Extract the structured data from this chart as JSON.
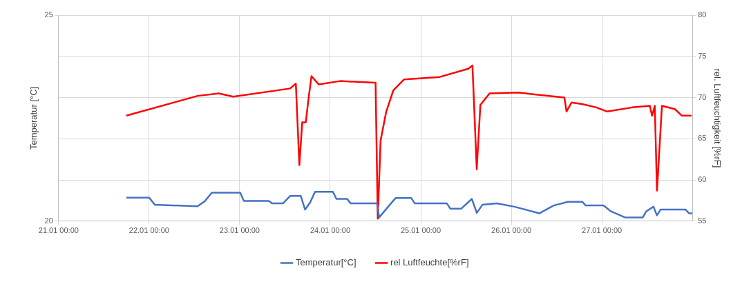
{
  "chart_data": {
    "type": "line",
    "ylabel": "Temperatur [°C]",
    "y2label": "rel. Luftfeuchtigkeit [%rF]",
    "xlim": [
      "--01-21",
      "--01-28"
    ],
    "xticks": [
      {
        "value": "--01-21",
        "label": "21.01 00:00"
      },
      {
        "value": "--01-22",
        "label": "22.01 00:00"
      },
      {
        "value": "--01-23",
        "label": "23.01 00:00"
      },
      {
        "value": "--01-24",
        "label": "24.01 00:00"
      },
      {
        "value": "--01-25",
        "label": "25.01 00:00"
      },
      {
        "value": "--01-26",
        "label": "26.01 00:00"
      },
      {
        "value": "--01-27",
        "label": "27.01 00:00"
      }
    ],
    "ylim": [
      20,
      25
    ],
    "yticks": [
      20,
      25
    ],
    "y2lim": [
      55,
      80
    ],
    "y2ticks": [
      55,
      60,
      65,
      70,
      75,
      80
    ],
    "grid": true,
    "legend": "bottom",
    "marker": "none",
    "line_style": "solid",
    "series": [
      {
        "name": "Temperatur[°C]",
        "color": "#4472c4",
        "axis": "y",
        "x": [
          "--01-21T17:56",
          "--01-22T00:00",
          "--01-22T01:29",
          "--01-22T12:49",
          "--01-22T14:43",
          "--01-22T16:36",
          "--01-23T00:09",
          "--01-23T01:06",
          "--01-23T07:42",
          "--01-23T08:38",
          "--01-23T11:28",
          "--01-23T13:22",
          "--01-23T16:12",
          "--01-23T17:20",
          "--01-23T18:39",
          "--01-23T19:58",
          "--01-24T00:42",
          "--01-24T01:38",
          "--01-24T04:28",
          "--01-24T05:25",
          "--01-24T12:24",
          "--01-24T12:59",
          "--01-24T15:49",
          "--01-24T17:20",
          "--01-24T21:29",
          "--01-24T22:25",
          "--01-25T06:55",
          "--01-25T07:51",
          "--01-25T10:41",
          "--01-25T13:32",
          "--01-25T14:51",
          "--01-25T16:22",
          "--01-25T20:08",
          "--01-26T00:50",
          "--01-26T07:28",
          "--01-26T11:14",
          "--01-26T15:01",
          "--01-26T18:48",
          "--01-26T19:44",
          "--01-27T00:27",
          "--01-27T02:21",
          "--01-27T06:07",
          "--01-27T10:51",
          "--01-27T11:47",
          "--01-27T13:41",
          "--01-27T14:37",
          "--01-27T15:33",
          "--01-27T22:11",
          "--01-27T23:07",
          "--01-28T00:00"
        ],
        "values": [
          20.57,
          20.57,
          20.4,
          20.36,
          20.48,
          20.69,
          20.69,
          20.49,
          20.49,
          20.43,
          20.43,
          20.61,
          20.61,
          20.28,
          20.45,
          20.71,
          20.71,
          20.54,
          20.54,
          20.43,
          20.43,
          20.09,
          20.4,
          20.56,
          20.56,
          20.43,
          20.43,
          20.3,
          20.3,
          20.54,
          20.2,
          20.4,
          20.43,
          20.35,
          20.19,
          20.38,
          20.47,
          20.47,
          20.38,
          20.38,
          20.24,
          20.09,
          20.09,
          20.24,
          20.35,
          20.14,
          20.28,
          20.28,
          20.19,
          20.19
        ]
      },
      {
        "name": "rel Luftfeuchte[%rF]",
        "color": "#ff0000",
        "axis": "y2",
        "x": [
          "--01-21T17:56",
          "--01-22T12:49",
          "--01-22T18:29",
          "--01-22T22:16",
          "--01-23T13:22",
          "--01-23T14:53",
          "--01-23T15:49",
          "--01-23T16:35",
          "--01-23T17:31",
          "--01-23T18:17",
          "--01-23T19:02",
          "--01-23T20:56",
          "--01-24T02:36",
          "--01-24T12:01",
          "--01-24T12:36",
          "--01-24T13:21",
          "--01-24T14:51",
          "--01-24T16:45",
          "--01-24T19:35",
          "--01-25T05:01",
          "--01-25T12:35",
          "--01-25T13:42",
          "--01-25T14:50",
          "--01-25T15:48",
          "--01-25T18:14",
          "--01-26T01:48",
          "--01-26T14:04",
          "--01-26T14:38",
          "--01-26T15:58",
          "--01-26T18:48",
          "--01-26T22:34",
          "--01-27T01:24",
          "--01-27T08:01",
          "--01-27T12:43",
          "--01-27T13:18",
          "--01-27T14:02",
          "--01-27T14:37",
          "--01-27T15:56",
          "--01-27T19:21",
          "--01-27T21:13",
          "--01-27T23:46"
        ],
        "values": [
          67.8,
          70.2,
          70.5,
          70.1,
          71.1,
          71.7,
          61.8,
          67.0,
          67.0,
          70.0,
          72.6,
          71.6,
          72.0,
          71.8,
          55.3,
          64.8,
          68.3,
          70.9,
          72.2,
          72.5,
          73.5,
          73.9,
          61.3,
          69.1,
          70.5,
          70.6,
          70.0,
          68.3,
          69.4,
          69.2,
          68.8,
          68.3,
          68.8,
          69.0,
          67.8,
          69.0,
          58.7,
          69.0,
          68.6,
          67.8,
          67.8
        ]
      }
    ]
  }
}
